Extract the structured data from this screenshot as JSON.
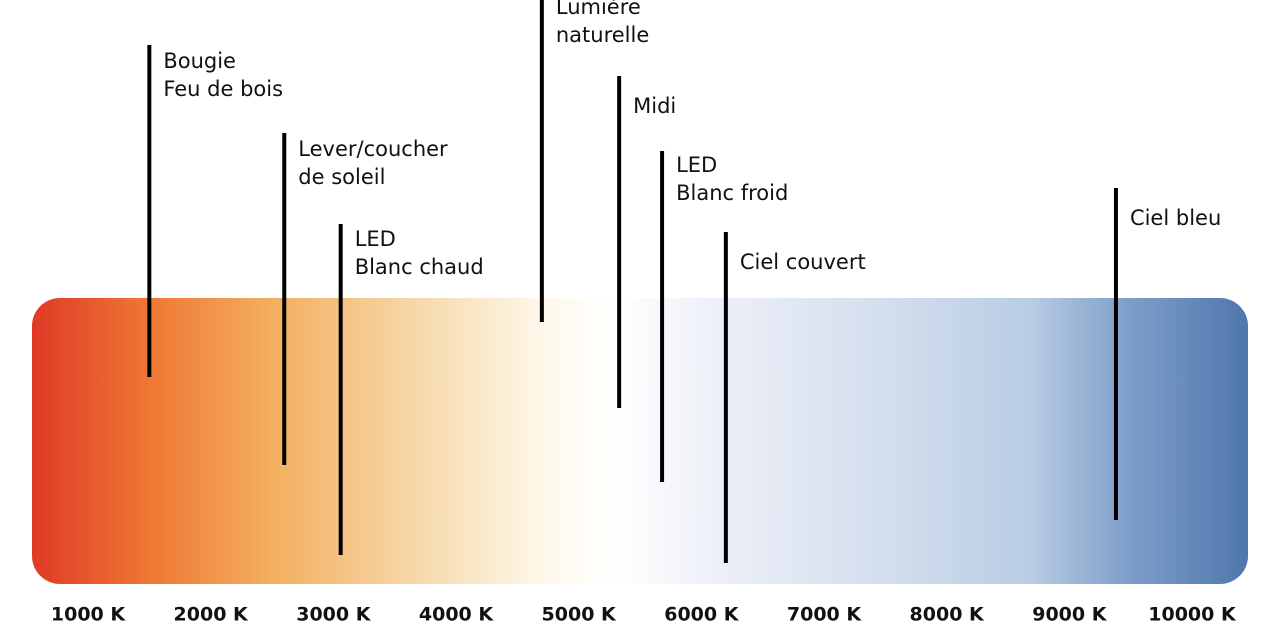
{
  "scale": {
    "xlim": [
      1000,
      10000
    ],
    "xticks": [
      {
        "value": 1000,
        "label": "1000 K"
      },
      {
        "value": 2000,
        "label": "2000 K"
      },
      {
        "value": 3000,
        "label": "3000 K"
      },
      {
        "value": 4000,
        "label": "4000 K"
      },
      {
        "value": 5000,
        "label": "5000 K"
      },
      {
        "value": 6000,
        "label": "6000 K"
      },
      {
        "value": 7000,
        "label": "7000 K"
      },
      {
        "value": 8000,
        "label": "8000 K"
      },
      {
        "value": 9000,
        "label": "9000 K"
      },
      {
        "value": 10000,
        "label": "10000 K"
      }
    ]
  },
  "markers": [
    {
      "lines": [
        "Bougie",
        "Feu de bois"
      ],
      "value": 1500
    },
    {
      "lines": [
        "Lever/coucher",
        "de soleil"
      ],
      "value": 2600
    },
    {
      "lines": [
        "LED",
        "Blanc chaud"
      ],
      "value": 3060
    },
    {
      "lines": [
        "Lumière",
        "naturelle"
      ],
      "value": 4700
    },
    {
      "lines": [
        "Midi"
      ],
      "value": 5330
    },
    {
      "lines": [
        "LED",
        "Blanc froid"
      ],
      "value": 5680
    },
    {
      "lines": [
        "Ciel couvert"
      ],
      "value": 6200
    },
    {
      "lines": [
        "Ciel bleu"
      ],
      "value": 9380
    }
  ]
}
